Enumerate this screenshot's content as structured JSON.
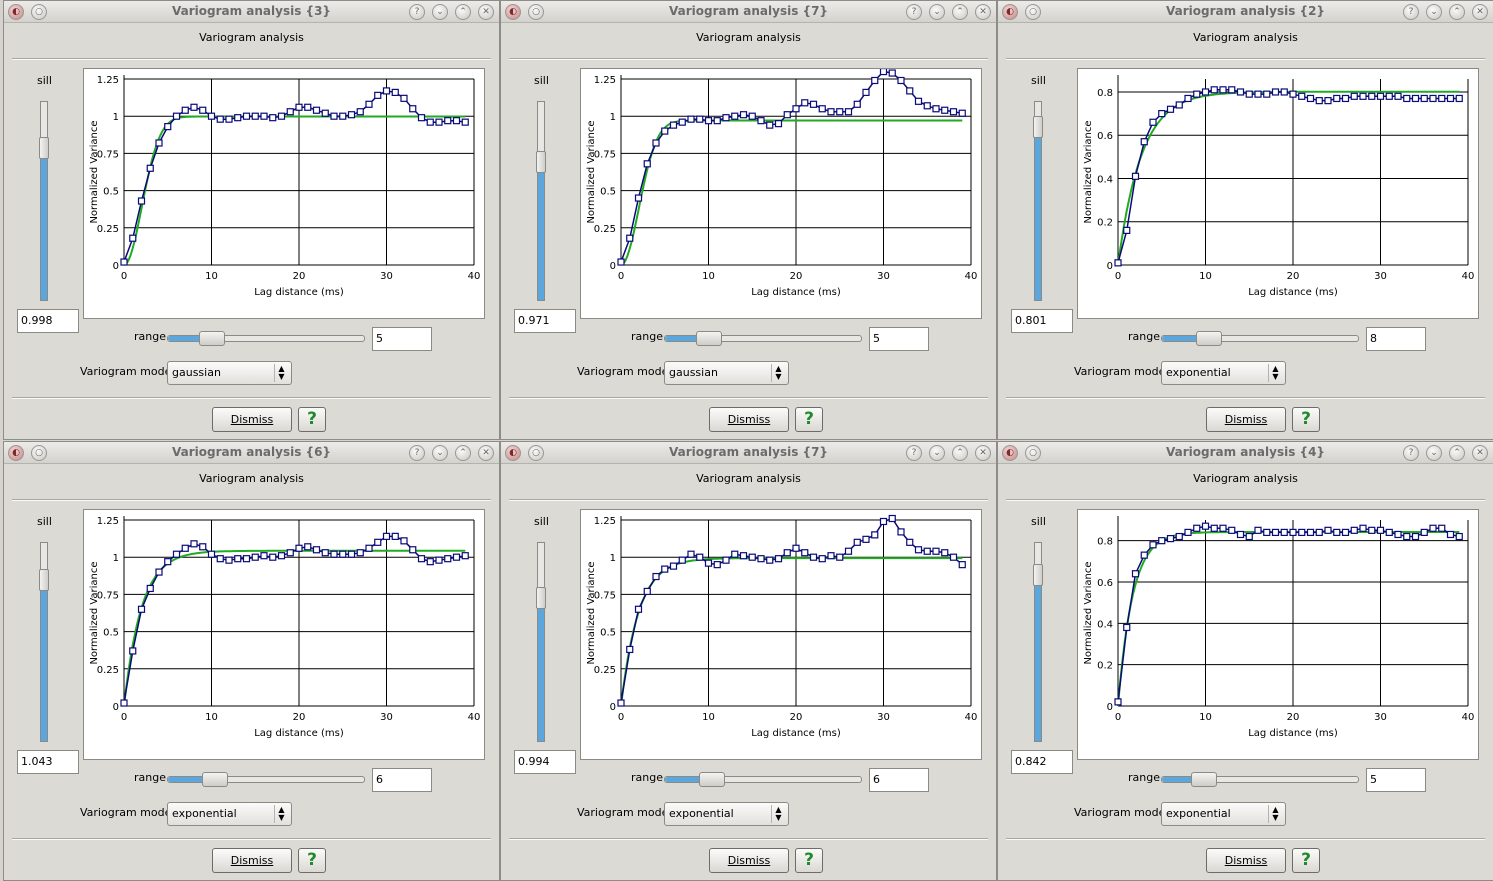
{
  "colors": {
    "fit_curve": "#22aa22",
    "data_curve": "#0a0a78",
    "grid": "#000000",
    "slider_fill": "#5aa6dd",
    "help_icon": "#1e8a2e"
  },
  "windows": [
    {
      "window_title": "Variogram analysis  {3}",
      "heading": "Variogram analysis",
      "sill_label": "sill",
      "sill_value": "0.998",
      "sill_level": 0.8,
      "range_label": "range",
      "range_value": "5",
      "range_level": 0.18,
      "model_label": "Variogram model",
      "model_value": "gaussian",
      "dismiss_label": "Dismiss",
      "help_label": "?",
      "chart_data": {
        "type": "line",
        "xlabel": "Lag distance (ms)",
        "ylabel": "Normalized Variance",
        "xlim": [
          0,
          40
        ],
        "ylim": [
          0,
          1.25
        ],
        "xticks": [
          "0",
          "10",
          "20",
          "30",
          "40"
        ],
        "yticks": [
          "0",
          "0.25",
          "0.5",
          "0.75",
          "1",
          "1.25"
        ],
        "grid": true,
        "series": [
          {
            "role": "data",
            "marker": "square",
            "x": [
              0,
              1,
              2,
              3,
              4,
              5,
              6,
              7,
              8,
              9,
              10,
              11,
              12,
              13,
              14,
              15,
              16,
              17,
              18,
              19,
              20,
              21,
              22,
              23,
              24,
              25,
              26,
              27,
              28,
              29,
              30,
              31,
              32,
              33,
              34,
              35,
              36,
              37,
              38,
              39
            ],
            "y": [
              0.02,
              0.18,
              0.43,
              0.65,
              0.82,
              0.93,
              1.0,
              1.04,
              1.06,
              1.04,
              1.0,
              0.98,
              0.98,
              0.99,
              1.0,
              1.0,
              1.0,
              0.99,
              1.0,
              1.03,
              1.06,
              1.06,
              1.04,
              1.02,
              1.0,
              1.0,
              1.01,
              1.03,
              1.08,
              1.14,
              1.17,
              1.16,
              1.12,
              1.05,
              0.99,
              0.96,
              0.96,
              0.97,
              0.97,
              0.96
            ]
          },
          {
            "role": "model",
            "model": "gaussian",
            "sill": 0.998,
            "range": 5
          }
        ]
      }
    },
    {
      "window_title": "Variogram analysis  {7}",
      "heading": "Variogram analysis",
      "sill_label": "sill",
      "sill_value": "0.971",
      "sill_level": 0.72,
      "range_label": "range",
      "range_value": "5",
      "range_level": 0.18,
      "model_label": "Variogram model",
      "model_value": "gaussian",
      "dismiss_label": "Dismiss",
      "help_label": "?",
      "chart_data": {
        "type": "line",
        "xlabel": "Lag distance (ms)",
        "ylabel": "Normalized Variance",
        "xlim": [
          0,
          40
        ],
        "ylim": [
          0,
          1.25
        ],
        "xticks": [
          "0",
          "10",
          "20",
          "30",
          "40"
        ],
        "yticks": [
          "0",
          "0.25",
          "0.5",
          "0.75",
          "1",
          "1.25"
        ],
        "grid": true,
        "series": [
          {
            "role": "data",
            "marker": "square",
            "x": [
              0,
              1,
              2,
              3,
              4,
              5,
              6,
              7,
              8,
              9,
              10,
              11,
              12,
              13,
              14,
              15,
              16,
              17,
              18,
              19,
              20,
              21,
              22,
              23,
              24,
              25,
              26,
              27,
              28,
              29,
              30,
              31,
              32,
              33,
              34,
              35,
              36,
              37,
              38,
              39
            ],
            "y": [
              0.02,
              0.18,
              0.45,
              0.68,
              0.82,
              0.9,
              0.94,
              0.96,
              0.98,
              0.98,
              0.97,
              0.97,
              0.99,
              1.0,
              1.01,
              1.0,
              0.97,
              0.94,
              0.95,
              1.01,
              1.05,
              1.09,
              1.08,
              1.05,
              1.03,
              1.03,
              1.03,
              1.08,
              1.16,
              1.24,
              1.3,
              1.29,
              1.24,
              1.17,
              1.1,
              1.07,
              1.05,
              1.04,
              1.03,
              1.02
            ]
          },
          {
            "role": "model",
            "model": "gaussian",
            "sill": 0.971,
            "range": 5
          }
        ]
      }
    },
    {
      "window_title": "Variogram analysis  {2}",
      "heading": "Variogram analysis",
      "sill_label": "sill",
      "sill_value": "0.801",
      "sill_level": 0.92,
      "range_label": "range",
      "range_value": "8",
      "range_level": 0.2,
      "model_label": "Variogram model",
      "model_value": "exponential",
      "dismiss_label": "Dismiss",
      "help_label": "?",
      "chart_data": {
        "type": "line",
        "xlabel": "Lag distance (ms)",
        "ylabel": "Normalized Variance",
        "xlim": [
          0,
          40
        ],
        "ylim": [
          0,
          0.86
        ],
        "xticks": [
          "0",
          "10",
          "20",
          "30",
          "40"
        ],
        "yticks": [
          "0",
          "0.2",
          "0.4",
          "0.6",
          "0.8"
        ],
        "grid": true,
        "series": [
          {
            "role": "data",
            "marker": "square",
            "x": [
              0,
              1,
              2,
              3,
              4,
              5,
              6,
              7,
              8,
              9,
              10,
              11,
              12,
              13,
              14,
              15,
              16,
              17,
              18,
              19,
              20,
              21,
              22,
              23,
              24,
              25,
              26,
              27,
              28,
              29,
              30,
              31,
              32,
              33,
              34,
              35,
              36,
              37,
              38,
              39
            ],
            "y": [
              0.01,
              0.16,
              0.41,
              0.57,
              0.66,
              0.7,
              0.72,
              0.74,
              0.77,
              0.79,
              0.8,
              0.81,
              0.81,
              0.81,
              0.8,
              0.79,
              0.79,
              0.79,
              0.8,
              0.8,
              0.79,
              0.78,
              0.77,
              0.76,
              0.76,
              0.77,
              0.77,
              0.78,
              0.78,
              0.78,
              0.78,
              0.78,
              0.78,
              0.77,
              0.77,
              0.77,
              0.77,
              0.77,
              0.77,
              0.77
            ]
          },
          {
            "role": "model",
            "model": "exponential",
            "sill": 0.801,
            "range": 8
          }
        ]
      }
    },
    {
      "window_title": "Variogram analysis  {6}",
      "heading": "Variogram analysis",
      "sill_label": "sill",
      "sill_value": "1.043",
      "sill_level": 0.85,
      "range_label": "range",
      "range_value": "6",
      "range_level": 0.2,
      "model_label": "Variogram model",
      "model_value": "exponential",
      "dismiss_label": "Dismiss",
      "help_label": "?",
      "chart_data": {
        "type": "line",
        "xlabel": "Lag distance (ms)",
        "ylabel": "Normalized Variance",
        "xlim": [
          0,
          40
        ],
        "ylim": [
          0,
          1.25
        ],
        "xticks": [
          "0",
          "10",
          "20",
          "30",
          "40"
        ],
        "yticks": [
          "0",
          "0.25",
          "0.5",
          "0.75",
          "1",
          "1.25"
        ],
        "grid": true,
        "series": [
          {
            "role": "data",
            "marker": "square",
            "x": [
              0,
              1,
              2,
              3,
              4,
              5,
              6,
              7,
              8,
              9,
              10,
              11,
              12,
              13,
              14,
              15,
              16,
              17,
              18,
              19,
              20,
              21,
              22,
              23,
              24,
              25,
              26,
              27,
              28,
              29,
              30,
              31,
              32,
              33,
              34,
              35,
              36,
              37,
              38,
              39
            ],
            "y": [
              0.02,
              0.37,
              0.65,
              0.79,
              0.9,
              0.97,
              1.02,
              1.06,
              1.09,
              1.07,
              1.02,
              0.99,
              0.98,
              0.99,
              0.99,
              1.0,
              1.01,
              1.0,
              1.01,
              1.03,
              1.06,
              1.07,
              1.05,
              1.03,
              1.02,
              1.02,
              1.02,
              1.03,
              1.06,
              1.1,
              1.14,
              1.14,
              1.11,
              1.05,
              0.99,
              0.97,
              0.98,
              0.99,
              1.0,
              1.01
            ]
          },
          {
            "role": "model",
            "model": "exponential",
            "sill": 1.043,
            "range": 6
          }
        ]
      }
    },
    {
      "window_title": "Variogram analysis  {7}",
      "heading": "Variogram analysis",
      "sill_label": "sill",
      "sill_value": "0.994",
      "sill_level": 0.75,
      "range_label": "range",
      "range_value": "6",
      "range_level": 0.2,
      "model_label": "Variogram model",
      "model_value": "exponential",
      "dismiss_label": "Dismiss",
      "help_label": "?",
      "chart_data": {
        "type": "line",
        "xlabel": "Lag distance (ms)",
        "ylabel": "Normalized Variance",
        "xlim": [
          0,
          40
        ],
        "ylim": [
          0,
          1.25
        ],
        "xticks": [
          "0",
          "10",
          "20",
          "30",
          "40"
        ],
        "yticks": [
          "0",
          "0.25",
          "0.5",
          "0.75",
          "1",
          "1.25"
        ],
        "grid": true,
        "series": [
          {
            "role": "data",
            "marker": "square",
            "x": [
              0,
              1,
              2,
              3,
              4,
              5,
              6,
              7,
              8,
              9,
              10,
              11,
              12,
              13,
              14,
              15,
              16,
              17,
              18,
              19,
              20,
              21,
              22,
              23,
              24,
              25,
              26,
              27,
              28,
              29,
              30,
              31,
              32,
              33,
              34,
              35,
              36,
              37,
              38,
              39
            ],
            "y": [
              0.02,
              0.38,
              0.65,
              0.77,
              0.87,
              0.92,
              0.94,
              0.98,
              1.02,
              1.0,
              0.96,
              0.95,
              0.98,
              1.02,
              1.01,
              1.0,
              0.99,
              0.98,
              0.99,
              1.03,
              1.06,
              1.03,
              1.0,
              0.99,
              1.01,
              1.0,
              1.04,
              1.1,
              1.12,
              1.15,
              1.24,
              1.26,
              1.17,
              1.1,
              1.05,
              1.04,
              1.04,
              1.03,
              1.0,
              0.95
            ]
          },
          {
            "role": "model",
            "model": "exponential",
            "sill": 0.994,
            "range": 6
          }
        ]
      }
    },
    {
      "window_title": "Variogram analysis  {4}",
      "heading": "Variogram analysis",
      "sill_label": "sill",
      "sill_value": "0.842",
      "sill_level": 0.88,
      "range_label": "range",
      "range_value": "5",
      "range_level": 0.17,
      "model_label": "Variogram model",
      "model_value": "exponential",
      "dismiss_label": "Dismiss",
      "help_label": "?",
      "chart_data": {
        "type": "line",
        "xlabel": "Lag distance (ms)",
        "ylabel": "Normalized Variance",
        "xlim": [
          0,
          40
        ],
        "ylim": [
          0,
          0.9
        ],
        "xticks": [
          "0",
          "10",
          "20",
          "30",
          "40"
        ],
        "yticks": [
          "0",
          "0.2",
          "0.4",
          "0.6",
          "0.8"
        ],
        "grid": true,
        "series": [
          {
            "role": "data",
            "marker": "square",
            "x": [
              0,
              1,
              2,
              3,
              4,
              5,
              6,
              7,
              8,
              9,
              10,
              11,
              12,
              13,
              14,
              15,
              16,
              17,
              18,
              19,
              20,
              21,
              22,
              23,
              24,
              25,
              26,
              27,
              28,
              29,
              30,
              31,
              32,
              33,
              34,
              35,
              36,
              37,
              38,
              39
            ],
            "y": [
              0.02,
              0.38,
              0.64,
              0.73,
              0.78,
              0.8,
              0.81,
              0.82,
              0.84,
              0.86,
              0.87,
              0.86,
              0.86,
              0.85,
              0.83,
              0.82,
              0.85,
              0.84,
              0.84,
              0.84,
              0.84,
              0.84,
              0.84,
              0.84,
              0.85,
              0.84,
              0.84,
              0.85,
              0.86,
              0.85,
              0.85,
              0.84,
              0.83,
              0.82,
              0.82,
              0.84,
              0.86,
              0.86,
              0.83,
              0.82
            ]
          },
          {
            "role": "model",
            "model": "exponential",
            "sill": 0.842,
            "range": 5
          }
        ]
      }
    }
  ]
}
